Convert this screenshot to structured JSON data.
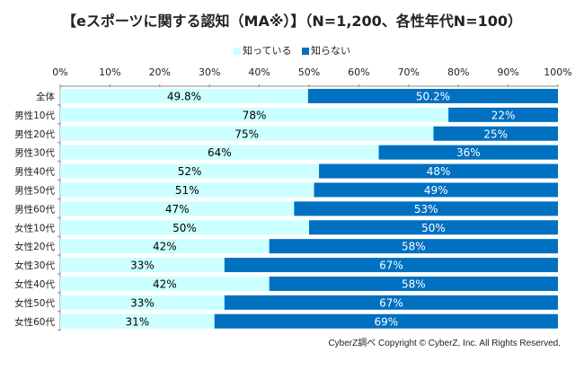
{
  "chart_data": {
    "type": "bar",
    "stacked": true,
    "orientation": "horizontal",
    "title": "【eスポーツに関する認知（MA※）】（N=1,200、各性年代N=100）",
    "categories": [
      "全体",
      "男性10代",
      "男性20代",
      "男性30代",
      "男性40代",
      "男性50代",
      "男性60代",
      "女性10代",
      "女性20代",
      "女性30代",
      "女性40代",
      "女性50代",
      "女性60代"
    ],
    "series": [
      {
        "name": "知っている",
        "color": "#ccffff",
        "text_color": "#000000",
        "values": [
          49.8,
          78,
          75,
          64,
          52,
          51,
          47,
          50,
          42,
          33,
          42,
          33,
          31
        ],
        "labels": [
          "49.8%",
          "78%",
          "75%",
          "64%",
          "52%",
          "51%",
          "47%",
          "50%",
          "42%",
          "33%",
          "42%",
          "33%",
          "31%"
        ]
      },
      {
        "name": "知らない",
        "color": "#0070c0",
        "text_color": "#ffffff",
        "values": [
          50.2,
          22,
          25,
          36,
          48,
          49,
          53,
          50,
          58,
          67,
          58,
          67,
          69
        ],
        "labels": [
          "50.2%",
          "22%",
          "25%",
          "36%",
          "48%",
          "49%",
          "53%",
          "50%",
          "58%",
          "67%",
          "58%",
          "67%",
          "69%"
        ]
      }
    ],
    "xlim": [
      0,
      100
    ],
    "xticks": [
      "0%",
      "10%",
      "20%",
      "30%",
      "40%",
      "50%",
      "60%",
      "70%",
      "80%",
      "90%",
      "100%"
    ],
    "legend": "top-center",
    "grid": false
  },
  "footer": "CyberZ調べ Copyright © CyberZ, Inc. All Rights Reserved."
}
